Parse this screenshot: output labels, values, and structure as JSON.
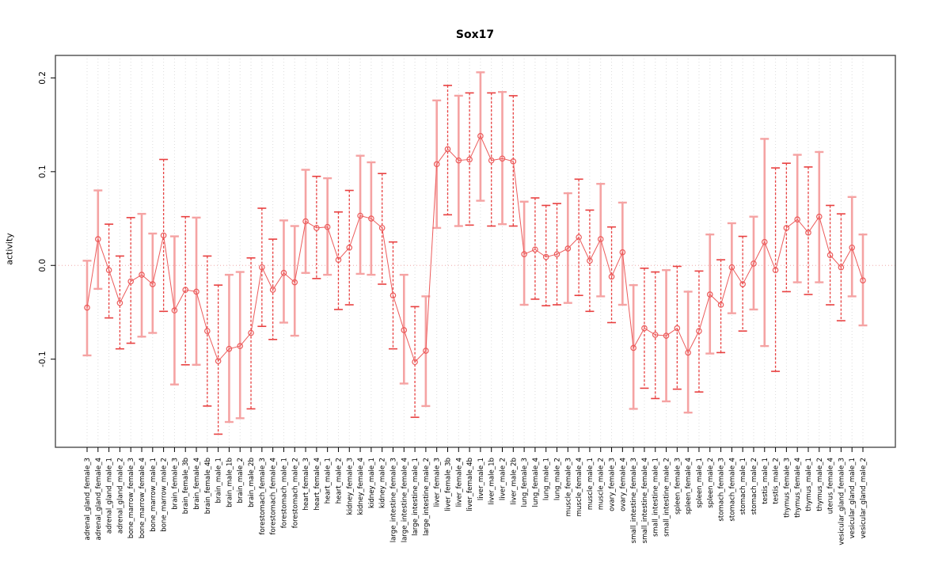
{
  "chart_data": {
    "type": "line",
    "subtype": "points-with-error-bars",
    "title": "Sox17",
    "xlabel": "",
    "ylabel": "activity",
    "ylim": [
      -0.194,
      0.224
    ],
    "yticks": [
      -0.1,
      0.0,
      0.1,
      0.2
    ],
    "ytick_labels": [
      "-0.1",
      "0.0",
      "0.1",
      "0.2"
    ],
    "grid": "vertical dotted line per category; dotted horizontal reference line at 0",
    "legend_position": "none",
    "categories": [
      "adrenal_gland_female_3",
      "adrenal_gland_female_4",
      "adrenal_gland_male_1",
      "adrenal_gland_male_2",
      "bone_marrow_female_3",
      "bone_marrow_female_4",
      "bone_marrow_male_1",
      "bone_marrow_male_2",
      "brain_female_3",
      "brain_female_3b",
      "brain_female_4",
      "brain_female_4b",
      "brain_male_1",
      "brain_male_1b",
      "brain_male_2",
      "brain_male_2b",
      "forestomach_female_3",
      "forestomach_female_4",
      "forestomach_male_1",
      "forestomach_male_2",
      "heart_female_3",
      "heart_female_4",
      "heart_male_1",
      "heart_male_2",
      "kidney_female_3",
      "kidney_female_4",
      "kidney_male_1",
      "kidney_male_2",
      "large_intestine_female_3",
      "large_intestine_female_4",
      "large_intestine_male_1",
      "large_intestine_male_2",
      "liver_female_3",
      "liver_female_3b",
      "liver_female_4",
      "liver_female_4b",
      "liver_male_1",
      "liver_male_1b",
      "liver_male_2",
      "liver_male_2b",
      "lung_female_3",
      "lung_female_4",
      "lung_male_1",
      "lung_male_2",
      "muscle_female_3",
      "muscle_female_4",
      "muscle_male_1",
      "muscle_male_2",
      "ovary_female_3",
      "ovary_female_4",
      "small_intestine_female_3",
      "small_intestine_female_4",
      "small_intestine_male_1",
      "small_intestine_male_2",
      "spleen_female_3",
      "spleen_female_4",
      "spleen_male_1",
      "spleen_male_2",
      "stomach_female_3",
      "stomach_female_4",
      "stomach_male_1",
      "stomach_male_2",
      "testis_male_1",
      "testis_male_2",
      "thymus_female_3",
      "thymus_female_4",
      "thymus_male_1",
      "thymus_male_2",
      "uterus_female_4",
      "vesicular_gland_female_3",
      "vesicular_gland_male_1",
      "vesicular_gland_male_2"
    ],
    "series": [
      {
        "name": "activity",
        "values": [
          -0.045,
          0.028,
          -0.005,
          -0.04,
          -0.017,
          -0.01,
          -0.02,
          0.032,
          -0.048,
          -0.026,
          -0.028,
          -0.07,
          -0.102,
          -0.089,
          -0.086,
          -0.072,
          -0.002,
          -0.026,
          -0.008,
          -0.018,
          0.047,
          0.04,
          0.041,
          0.006,
          0.019,
          0.053,
          0.05,
          0.04,
          -0.032,
          -0.069,
          -0.103,
          -0.091,
          0.108,
          0.124,
          0.112,
          0.113,
          0.138,
          0.112,
          0.114,
          0.111,
          0.012,
          0.017,
          0.009,
          0.012,
          0.018,
          0.03,
          0.005,
          0.028,
          -0.012,
          0.014,
          -0.088,
          -0.067,
          -0.074,
          -0.075,
          -0.067,
          -0.093,
          -0.07,
          -0.031,
          -0.042,
          -0.002,
          -0.02,
          0.002,
          0.025,
          -0.005,
          0.04,
          0.049,
          0.035,
          0.052,
          0.011,
          -0.002,
          0.019,
          -0.016
        ],
        "ci_low": [
          -0.096,
          -0.025,
          -0.056,
          -0.089,
          -0.083,
          -0.076,
          -0.072,
          -0.049,
          -0.127,
          -0.106,
          -0.106,
          -0.15,
          -0.18,
          -0.167,
          -0.163,
          -0.153,
          -0.065,
          -0.079,
          -0.061,
          -0.075,
          -0.008,
          -0.014,
          -0.01,
          -0.047,
          -0.042,
          -0.009,
          -0.01,
          -0.02,
          -0.089,
          -0.126,
          -0.162,
          -0.15,
          0.04,
          0.054,
          0.042,
          0.043,
          0.069,
          0.042,
          0.044,
          0.042,
          -0.042,
          -0.036,
          -0.043,
          -0.042,
          -0.04,
          -0.032,
          -0.049,
          -0.033,
          -0.061,
          -0.042,
          -0.153,
          -0.131,
          -0.142,
          -0.145,
          -0.132,
          -0.157,
          -0.135,
          -0.094,
          -0.093,
          -0.051,
          -0.07,
          -0.047,
          -0.086,
          -0.113,
          -0.028,
          -0.018,
          -0.031,
          -0.018,
          -0.042,
          -0.059,
          -0.033,
          -0.064
        ],
        "ci_high": [
          0.005,
          0.08,
          0.044,
          0.01,
          0.051,
          0.055,
          0.034,
          0.113,
          0.031,
          0.052,
          0.051,
          0.01,
          -0.021,
          -0.01,
          -0.007,
          0.008,
          0.061,
          0.028,
          0.048,
          0.042,
          0.102,
          0.095,
          0.093,
          0.057,
          0.08,
          0.117,
          0.11,
          0.098,
          0.025,
          -0.01,
          -0.044,
          -0.033,
          0.176,
          0.192,
          0.181,
          0.184,
          0.206,
          0.184,
          0.185,
          0.181,
          0.068,
          0.072,
          0.064,
          0.066,
          0.077,
          0.092,
          0.059,
          0.087,
          0.041,
          0.067,
          -0.021,
          -0.003,
          -0.007,
          -0.005,
          -0.001,
          -0.028,
          -0.006,
          0.033,
          0.006,
          0.045,
          0.031,
          0.052,
          0.135,
          0.104,
          0.109,
          0.118,
          0.105,
          0.121,
          0.064,
          0.055,
          0.073,
          0.033
        ],
        "bar_styles": [
          "solid",
          "solid",
          "dashed",
          "dashed",
          "dashed",
          "solid",
          "solid",
          "dashed",
          "solid",
          "dashed",
          "solid",
          "dashed",
          "dashed",
          "solid",
          "solid",
          "dashed",
          "dashed",
          "dashed",
          "solid",
          "solid",
          "solid",
          "dashed",
          "solid",
          "dashed",
          "dashed",
          "solid",
          "solid",
          "dashed",
          "dashed",
          "solid",
          "dashed",
          "solid",
          "solid",
          "dashed",
          "solid",
          "dashed",
          "solid",
          "dashed",
          "solid",
          "dashed",
          "solid",
          "dashed",
          "dashed",
          "dashed",
          "solid",
          "dashed",
          "dashed",
          "solid",
          "dashed",
          "solid",
          "solid",
          "dashed",
          "dashed",
          "solid",
          "dashed",
          "solid",
          "dashed",
          "solid",
          "dashed",
          "solid",
          "dashed",
          "solid",
          "solid",
          "dashed",
          "dashed",
          "solid",
          "dashed",
          "solid",
          "dashed",
          "dashed",
          "solid",
          "solid"
        ],
        "marker": "open-circle"
      }
    ],
    "colors": {
      "point_and_line": "#ec5b5b",
      "error_bar_dashed": "#e84040",
      "error_bar_solid": "#f5a3a3",
      "zero_line": "#efa8a8",
      "gridline": "#dcdcdc",
      "plot_border": "#4d4d4d",
      "text": "#000000"
    }
  }
}
